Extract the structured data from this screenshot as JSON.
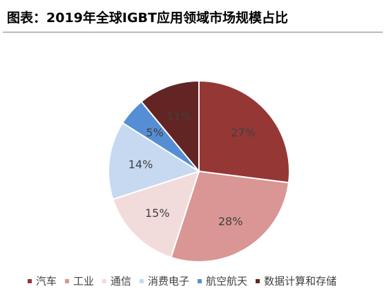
{
  "title": "图表：2019年全球IGBT应用领域市场规模占比",
  "chart_data": {
    "type": "pie",
    "series": [
      {
        "name": "汽车",
        "value": 27,
        "label": "27%",
        "color": "#953735"
      },
      {
        "name": "工业",
        "value": 28,
        "label": "28%",
        "color": "#d99694"
      },
      {
        "name": "通信",
        "value": 15,
        "label": "15%",
        "color": "#f2dcdb"
      },
      {
        "name": "消费电子",
        "value": 14,
        "label": "14%",
        "color": "#c6d9f1"
      },
      {
        "name": "航空航天",
        "value": 5,
        "label": "5%",
        "color": "#558ed5"
      },
      {
        "name": "数据计算和存储",
        "value": 11,
        "label": "11%",
        "color": "#632523"
      }
    ],
    "legend_position": "bottom"
  }
}
